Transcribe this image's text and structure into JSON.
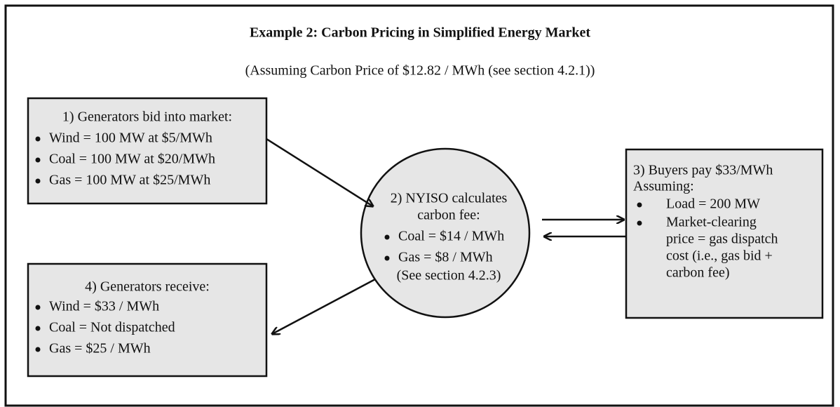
{
  "title": "Example 2: Carbon Pricing in Simplified Energy Market",
  "subtitle": "(Assuming Carbon Price of $12.82 / MWh (see section 4.2.1))",
  "nodes": [
    {
      "heading": [
        "1) Generators bid into market:"
      ],
      "bullets": [
        [
          "Wind = 100 MW at $5/MWh"
        ],
        [
          "Coal = 100 MW at $20/MWh"
        ],
        [
          "Gas = 100 MW at $25/MWh"
        ]
      ]
    },
    {
      "heading": [
        "2) NYISO calculates",
        "carbon fee:"
      ],
      "bullets": [
        [
          "Coal = $14 / MWh"
        ],
        [
          "Gas = $8 / MWh"
        ]
      ],
      "note": "(See section 4.2.3)"
    },
    {
      "heading": [
        "3) Buyers pay $33/MWh",
        "Assuming:"
      ],
      "bullets": [
        [
          "Load = 200 MW"
        ],
        [
          "Market-clearing",
          "price = gas dispatch",
          "cost (i.e., gas bid +",
          "carbon fee)"
        ]
      ]
    },
    {
      "heading": [
        "4) Generators receive:"
      ],
      "bullets": [
        [
          "Wind = $33 / MWh"
        ],
        [
          "Coal = Not dispatched"
        ],
        [
          "Gas = $25 / MWh"
        ]
      ]
    }
  ]
}
